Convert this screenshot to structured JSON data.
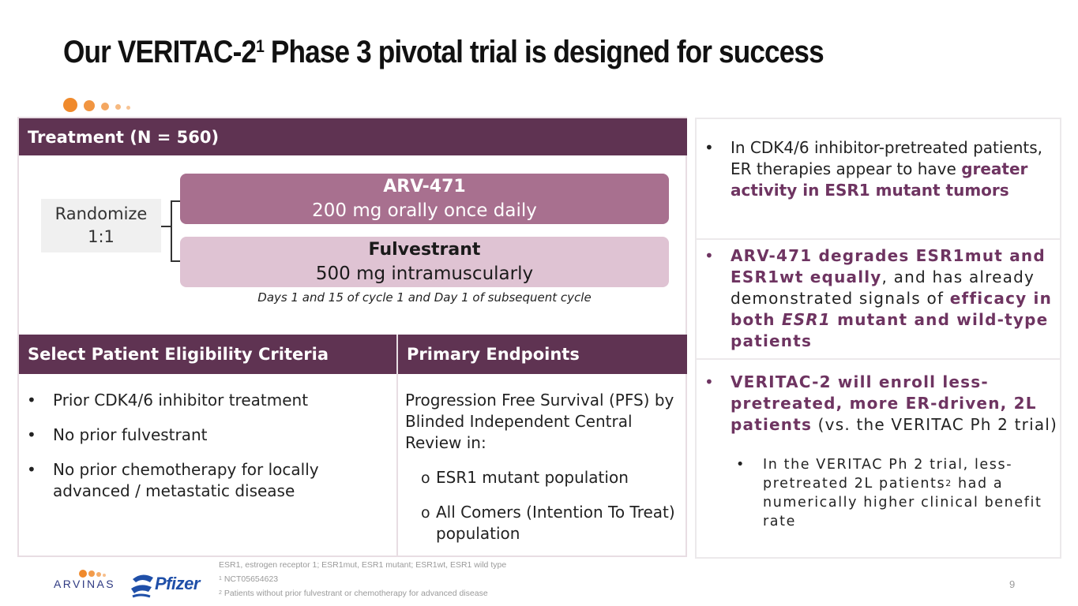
{
  "title": {
    "main_a": "Our VERITAC-2",
    "sup": "1",
    "main_b": " Phase 3 pivotal trial is designed for success"
  },
  "treatment": {
    "header": "Treatment (N = 560)",
    "randomize": [
      "Randomize",
      "1:1"
    ],
    "arm1": {
      "name": "ARV-471",
      "dose": "200 mg orally once daily"
    },
    "arm2": {
      "name": "Fulvestrant",
      "dose": "500 mg intramuscularly"
    },
    "schedule": "Days 1 and 15 of cycle 1 and Day 1 of subsequent cycle"
  },
  "eligibility": {
    "header": "Select Patient Eligibility Criteria",
    "items": [
      "Prior CDK4/6 inhibitor treatment",
      "No prior fulvestrant",
      "No prior chemotherapy for locally advanced / metastatic disease"
    ]
  },
  "endpoints": {
    "header": "Primary Endpoints",
    "intro": "Progression Free Survival (PFS) by Blinded Independent Central Review in:",
    "items": [
      "ESR1 mutant population",
      "All Comers (Intention To Treat) population"
    ]
  },
  "right": {
    "b1": {
      "plain": "In CDK4/6 inhibitor-pretreated patients, ER therapies appear to have ",
      "bold": "greater activity in ESR1 mutant tumors"
    },
    "b2": {
      "bold1": "ARV-471 degrades ESR1mut and ESR1wt equally",
      "plain": ", and has already demonstrated signals of ",
      "bold2": "efficacy in both ",
      "italic": "ESR1",
      "bold3": " mutant and wild-type patients"
    },
    "b3": {
      "bold": "VERITAC-2 will enroll less-pretreated, more ER-driven, 2L patients",
      "plain": " (vs. the VERITAC Ph 2 trial)"
    },
    "b3_sub": {
      "a": "In the VERITAC Ph 2 trial, less-pretreated 2L patients",
      "sup": "2",
      "b": " had a numerically higher clinical benefit rate"
    }
  },
  "footnotes": {
    "abbrev": "ESR1, estrogen receptor 1; ESR1mut, ESR1 mutant; ESR1wt, ESR1 wild type",
    "n1_sup": "1",
    "n1": " NCT05654623",
    "n2_sup": "2",
    "n2": " Patients without prior fulvestrant or chemotherapy for advanced disease"
  },
  "page_number": "9",
  "logos": {
    "arvinas": "ARVINAS",
    "pfizer": "Pfizer"
  },
  "colors": {
    "header_bg": "#5f3352",
    "arm1_bg": "#a8708f",
    "arm2_bg": "#dfc3d3",
    "accent": "#6e3461",
    "orange": "#f08a2c"
  }
}
